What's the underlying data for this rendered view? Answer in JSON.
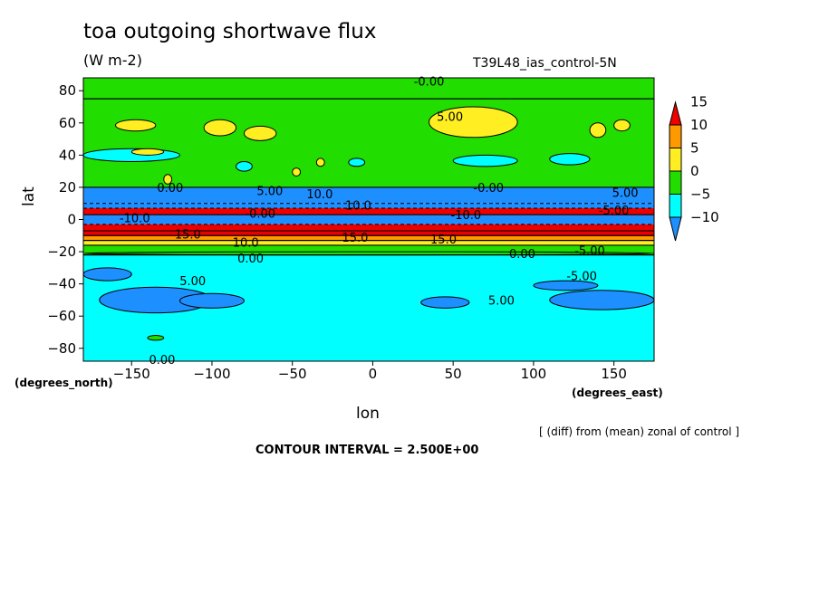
{
  "title": "toa outgoing shortwave flux",
  "units": "(W m-2)",
  "run_name": "T39L48_ias_control-5N",
  "x_units_note": "(degrees_east)",
  "y_units_note": "(degrees_north)",
  "footer_note": "[ (diff) from (mean) zonal of control ]",
  "contour_interval_text": "CONTOUR INTERVAL = 2.500E+00",
  "colors": {
    "le_-10": "#1e8fff",
    "-10_-5": "#1e8fff",
    "-5_0": "#00ffff",
    "0_5": "#22dd00",
    "5_10": "#ffee22",
    "10_15": "#ff9900",
    "ge_15": "#ee0000"
  },
  "chart_data": {
    "type": "heatmap",
    "title": "toa outgoing shortwave flux",
    "subtitle": "(W m-2)",
    "xlabel": "lon",
    "ylabel": "lat",
    "xlim": [
      -180,
      175
    ],
    "ylim": [
      -88,
      88
    ],
    "x_ticks": [
      -150,
      -100,
      -50,
      0,
      50,
      100,
      150
    ],
    "x_tick_labels": [
      "−150",
      "−100",
      "−50",
      "0",
      "50",
      "100",
      "150"
    ],
    "y_ticks": [
      -80,
      -60,
      -40,
      -20,
      0,
      20,
      40,
      60,
      80
    ],
    "y_tick_labels": [
      "−80",
      "−60",
      "−40",
      "−20",
      "0",
      "20",
      "40",
      "60",
      "80"
    ],
    "contour_interval": 2.5,
    "colorbar": {
      "levels": [
        -10,
        -5,
        0,
        5,
        10,
        15
      ],
      "tick_labels": [
        "−10",
        "−5",
        "0",
        "5",
        "10",
        "15"
      ],
      "colors": [
        "#1e8fff",
        "#00ffff",
        "#22dd00",
        "#ffee22",
        "#ff9900",
        "#ee0000"
      ]
    },
    "zonal_bands": [
      {
        "lat": [
          75,
          88
        ],
        "value": 2
      },
      {
        "lat": [
          20,
          75
        ],
        "value": 2
      },
      {
        "lat": [
          10,
          20
        ],
        "value": -8
      },
      {
        "lat": [
          7,
          10
        ],
        "value": -11
      },
      {
        "lat": [
          3,
          7
        ],
        "value": 16
      },
      {
        "lat": [
          -3,
          3
        ],
        "value": -11
      },
      {
        "lat": [
          -7,
          -3
        ],
        "value": 16
      },
      {
        "lat": [
          -10,
          -7
        ],
        "value": 17
      },
      {
        "lat": [
          -13,
          -10
        ],
        "value": 12
      },
      {
        "lat": [
          -16,
          -13
        ],
        "value": 7
      },
      {
        "lat": [
          -22,
          -16
        ],
        "value": 2
      },
      {
        "lat": [
          -88,
          -22
        ],
        "value": -3
      }
    ],
    "patches": [
      {
        "lon": [
          -140,
          -130
        ],
        "lat": [
          -75,
          -72
        ],
        "value": 2
      },
      {
        "lon": [
          -180,
          -120
        ],
        "lat": [
          36,
          44
        ],
        "value": -3
      },
      {
        "lon": [
          -160,
          -135
        ],
        "lat": [
          55,
          62
        ],
        "value": 7
      },
      {
        "lon": [
          -105,
          -85
        ],
        "lat": [
          52,
          62
        ],
        "value": 7
      },
      {
        "lon": [
          -80,
          -60
        ],
        "lat": [
          49,
          58
        ],
        "value": 7
      },
      {
        "lon": [
          -50,
          -45
        ],
        "lat": [
          27,
          32
        ],
        "value": 7
      },
      {
        "lon": [
          -35,
          -30
        ],
        "lat": [
          33,
          38
        ],
        "value": 7
      },
      {
        "lon": [
          -130,
          -125
        ],
        "lat": [
          22,
          28
        ],
        "value": 7
      },
      {
        "lon": [
          -85,
          -75
        ],
        "lat": [
          30,
          36
        ],
        "value": -3
      },
      {
        "lon": [
          -15,
          -5
        ],
        "lat": [
          33,
          38
        ],
        "value": -3
      },
      {
        "lon": [
          35,
          90
        ],
        "lat": [
          51,
          70
        ],
        "value": 7
      },
      {
        "lon": [
          -150,
          -130
        ],
        "lat": [
          40,
          44
        ],
        "value": 7
      },
      {
        "lon": [
          50,
          90
        ],
        "lat": [
          33,
          40
        ],
        "value": -3
      },
      {
        "lon": [
          135,
          145
        ],
        "lat": [
          51,
          60
        ],
        "value": 7
      },
      {
        "lon": [
          150,
          160
        ],
        "lat": [
          55,
          62
        ],
        "value": 7
      },
      {
        "lon": [
          110,
          135
        ],
        "lat": [
          34,
          41
        ],
        "value": -3
      },
      {
        "lon": [
          -170,
          -100
        ],
        "lat": [
          -58,
          -42
        ],
        "value": -8
      },
      {
        "lon": [
          -120,
          -80
        ],
        "lat": [
          -55,
          -46
        ],
        "value": -8
      },
      {
        "lon": [
          110,
          175
        ],
        "lat": [
          -56,
          -44
        ],
        "value": -8
      },
      {
        "lon": [
          30,
          60
        ],
        "lat": [
          -55,
          -48
        ],
        "value": -8
      },
      {
        "lon": [
          -180,
          -150
        ],
        "lat": [
          -38,
          -30
        ],
        "value": -8
      },
      {
        "lon": [
          100,
          140
        ],
        "lat": [
          -44,
          -38
        ],
        "value": -8
      },
      {
        "lon": [
          -180,
          175
        ],
        "lat": [
          -22,
          -20
        ],
        "value": 2
      }
    ],
    "contour_labels": [
      {
        "text": "-0.00",
        "lon": 35,
        "lat": 86
      },
      {
        "text": "5.00",
        "lon": 48,
        "lat": 64
      },
      {
        "text": "0.00",
        "lon": -126,
        "lat": 20
      },
      {
        "text": "5.00",
        "lon": -64,
        "lat": 18
      },
      {
        "text": "10.0",
        "lon": -33,
        "lat": 16
      },
      {
        "text": "-0.00",
        "lon": 72,
        "lat": 20
      },
      {
        "text": "5.00",
        "lon": 157,
        "lat": 17
      },
      {
        "text": "10.0",
        "lon": -9,
        "lat": 9
      },
      {
        "text": "-10.0",
        "lon": -148,
        "lat": 1
      },
      {
        "text": "-0.00",
        "lon": -70,
        "lat": 4
      },
      {
        "text": "-10.0",
        "lon": 58,
        "lat": 3
      },
      {
        "text": "-5.00",
        "lon": 150,
        "lat": 6
      },
      {
        "text": "15.0",
        "lon": -115,
        "lat": -9
      },
      {
        "text": "10.0",
        "lon": -79,
        "lat": -14
      },
      {
        "text": "15.0",
        "lon": -11,
        "lat": -11
      },
      {
        "text": "15.0",
        "lon": 44,
        "lat": -12
      },
      {
        "text": "0.00",
        "lon": 93,
        "lat": -21
      },
      {
        "text": "-5.00",
        "lon": 135,
        "lat": -19
      },
      {
        "text": "0.00",
        "lon": -76,
        "lat": -24
      },
      {
        "text": "5.00",
        "lon": -112,
        "lat": -38
      },
      {
        "text": "-5.00",
        "lon": 130,
        "lat": -35
      },
      {
        "text": "5.00",
        "lon": 80,
        "lat": -50
      },
      {
        "text": "0.00",
        "lon": -131,
        "lat": -87
      }
    ]
  }
}
